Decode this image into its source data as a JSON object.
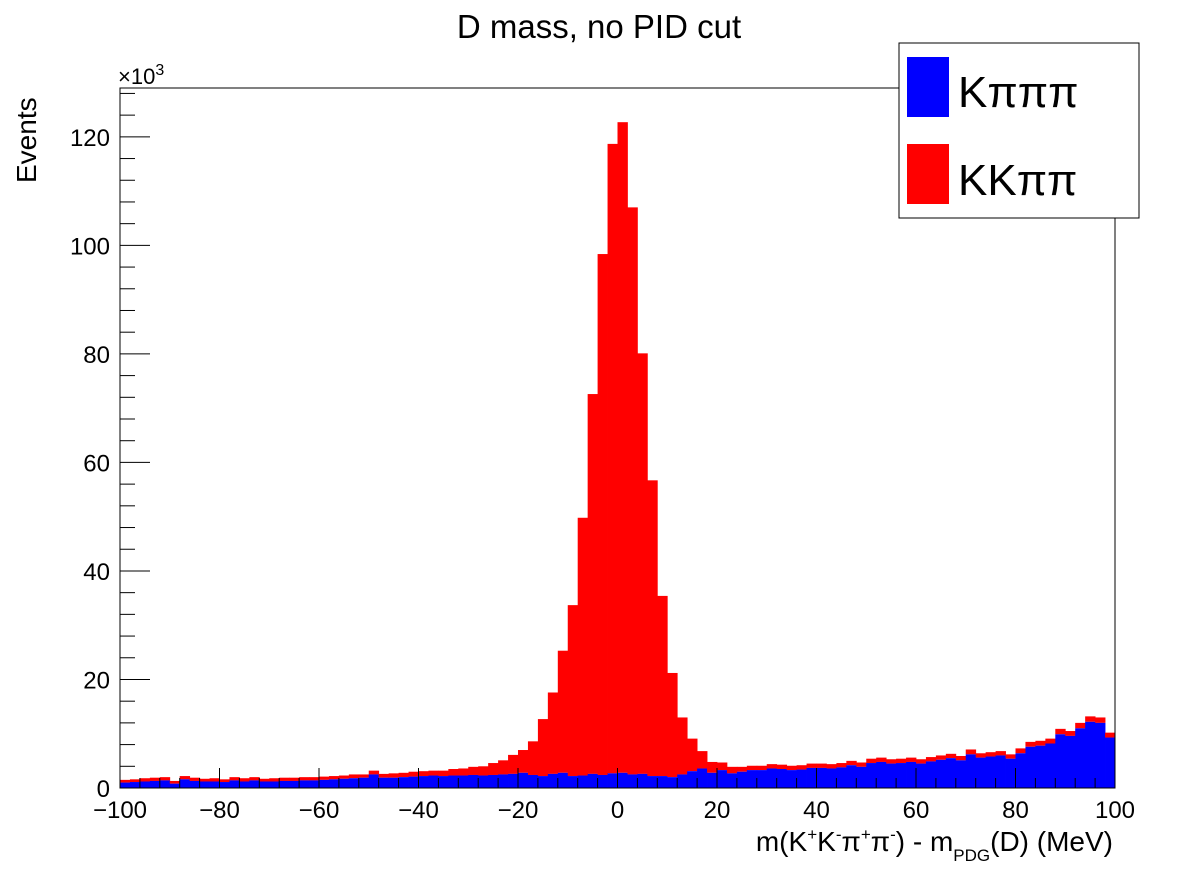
{
  "chart_data": {
    "type": "bar",
    "stacked": true,
    "title": "D mass, no PID cut",
    "xlabel": "m(K⁺K⁻π⁺π⁻) - m_PDG(D) (MeV)",
    "xlabel_parts": {
      "pre": "m(K",
      "sup1": "+",
      "mid1": "K",
      "sup2": "-",
      "mid2": "π",
      "sup3": "+",
      "mid3": "π",
      "sup4": "-",
      "mid4": ") - m",
      "sub": "PDG",
      "post": "(D) (MeV)"
    },
    "ylabel": "Events",
    "y_multiplier": "×10",
    "y_multiplier_exp": "3",
    "xlim": [
      -100,
      100
    ],
    "ylim": [
      0,
      129
    ],
    "x_ticks": [
      "−100",
      "−80",
      "−60",
      "−40",
      "−20",
      "0",
      "20",
      "40",
      "60",
      "80",
      "100"
    ],
    "x_tick_values": [
      -100,
      -80,
      -60,
      -40,
      -20,
      0,
      20,
      40,
      60,
      80,
      100
    ],
    "y_ticks": [
      "0",
      "20",
      "40",
      "60",
      "80",
      "100",
      "120"
    ],
    "y_tick_values": [
      0,
      20,
      40,
      60,
      80,
      100,
      120
    ],
    "bin_width": 2,
    "bin_low_edges": [
      -100,
      -98,
      -96,
      -94,
      -92,
      -90,
      -88,
      -86,
      -84,
      -82,
      -80,
      -78,
      -76,
      -74,
      -72,
      -70,
      -68,
      -66,
      -64,
      -62,
      -60,
      -58,
      -56,
      -54,
      -52,
      -50,
      -48,
      -46,
      -44,
      -42,
      -40,
      -38,
      -36,
      -34,
      -32,
      -30,
      -28,
      -26,
      -24,
      -22,
      -20,
      -18,
      -16,
      -14,
      -12,
      -10,
      -8,
      -6,
      -4,
      -2,
      0,
      2,
      4,
      6,
      8,
      10,
      12,
      14,
      16,
      18,
      20,
      22,
      24,
      26,
      28,
      30,
      32,
      34,
      36,
      38,
      40,
      42,
      44,
      46,
      48,
      50,
      52,
      54,
      56,
      58,
      60,
      62,
      64,
      66,
      68,
      70,
      72,
      74,
      76,
      78,
      80,
      82,
      84,
      86,
      88,
      90,
      92,
      94,
      96,
      98
    ],
    "legend_position": "top-right",
    "series": [
      {
        "name": "Kπππ",
        "color": "#0000ff",
        "values": [
          1.0,
          1.1,
          1.2,
          1.3,
          1.4,
          0.8,
          1.6,
          1.3,
          1.2,
          1.2,
          1.1,
          1.4,
          1.2,
          1.4,
          1.2,
          1.2,
          1.3,
          1.3,
          1.4,
          1.4,
          1.5,
          1.6,
          1.7,
          1.8,
          1.9,
          2.5,
          1.9,
          1.9,
          2.0,
          2.1,
          2.2,
          2.3,
          2.2,
          2.3,
          2.3,
          2.4,
          2.3,
          2.4,
          2.5,
          2.6,
          2.8,
          2.4,
          2.2,
          2.6,
          2.8,
          2.2,
          2.3,
          2.6,
          2.4,
          2.7,
          2.8,
          2.5,
          2.6,
          2.2,
          2.2,
          2.0,
          2.5,
          3.1,
          3.6,
          2.8,
          3.3,
          2.7,
          3.0,
          3.3,
          3.3,
          3.6,
          3.5,
          3.3,
          3.4,
          3.7,
          3.7,
          3.6,
          3.8,
          4.2,
          3.9,
          4.6,
          4.8,
          4.5,
          4.6,
          4.8,
          4.5,
          4.9,
          5.2,
          5.5,
          5.1,
          6.2,
          5.6,
          5.8,
          6.0,
          5.4,
          6.4,
          7.6,
          7.8,
          8.2,
          9.9,
          9.6,
          11.0,
          12.2,
          12.0,
          9.3
        ]
      },
      {
        "name": "KKππ",
        "color": "#ff0000",
        "values": [
          0.5,
          0.5,
          0.6,
          0.6,
          0.6,
          0.5,
          0.6,
          0.6,
          0.5,
          0.6,
          0.5,
          0.6,
          0.6,
          0.6,
          0.5,
          0.6,
          0.6,
          0.6,
          0.6,
          0.6,
          0.6,
          0.6,
          0.6,
          0.7,
          0.6,
          0.7,
          0.7,
          0.8,
          0.8,
          0.9,
          0.9,
          0.9,
          1.0,
          1.2,
          1.3,
          1.5,
          1.7,
          2.2,
          2.6,
          3.5,
          4.2,
          6.2,
          10.5,
          15.0,
          22.5,
          31.5,
          47.5,
          70.0,
          96.0,
          116.0,
          119.9,
          104.5,
          77.5,
          54.5,
          33.2,
          19.2,
          10.5,
          6.0,
          3.2,
          2.0,
          1.4,
          1.2,
          0.9,
          0.8,
          0.8,
          0.8,
          0.8,
          0.8,
          0.8,
          0.8,
          0.8,
          0.8,
          0.8,
          0.8,
          0.8,
          0.8,
          0.8,
          0.8,
          0.8,
          0.8,
          0.8,
          0.8,
          0.8,
          0.8,
          0.8,
          0.9,
          0.8,
          0.8,
          0.8,
          0.8,
          0.9,
          0.9,
          0.9,
          0.9,
          1.0,
          0.9,
          1.0,
          1.0,
          1.0,
          0.9
        ]
      }
    ]
  }
}
